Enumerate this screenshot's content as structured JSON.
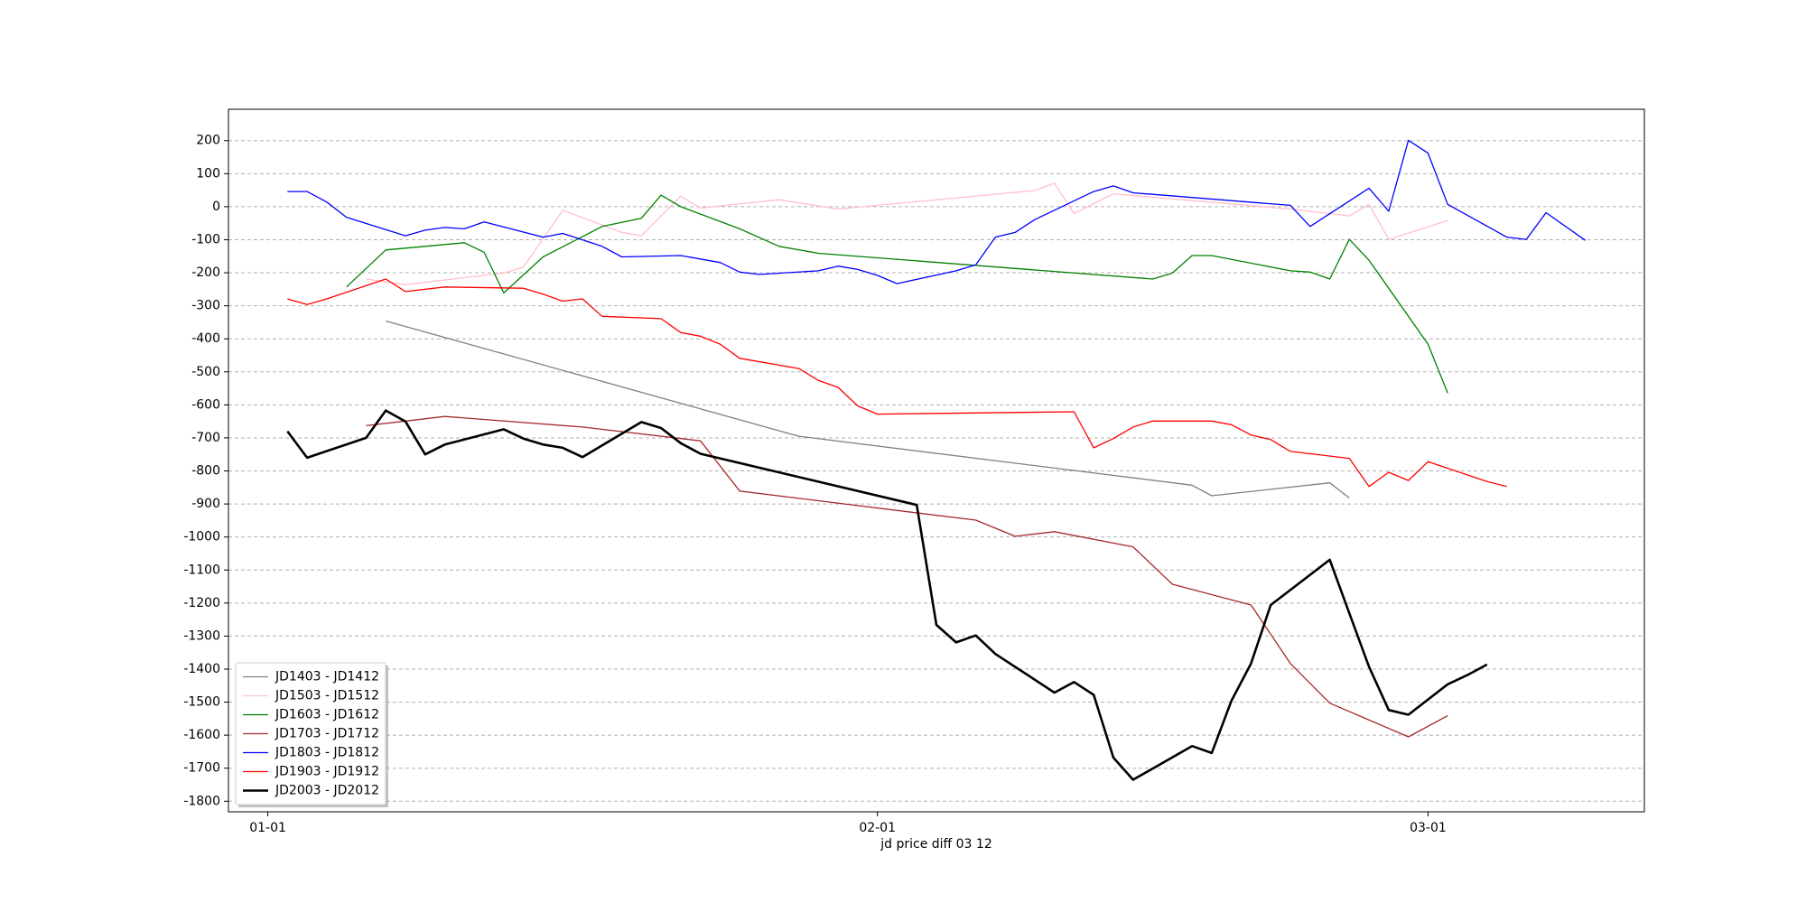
{
  "chart_data": {
    "type": "line",
    "xlabel": "jd price diff 03 12",
    "xlim": [
      "12-30",
      "03-12"
    ],
    "xticks": [
      "01-01",
      "02-01",
      "03-01"
    ],
    "ylim": [
      -1832,
      295
    ],
    "yticks": [
      200,
      100,
      0,
      -100,
      -200,
      -300,
      -400,
      -500,
      -600,
      -700,
      -800,
      -900,
      -1000,
      -1100,
      -1200,
      -1300,
      -1400,
      -1500,
      -1600,
      -1700,
      -1800
    ],
    "grid": true,
    "legend": "lower left",
    "series": [
      {
        "name": "JD1403 - JD1412",
        "color": "#808080",
        "width": 1.3,
        "x": [
          "01-07",
          "01-28",
          "02-17",
          "02-18",
          "02-24",
          "02-25"
        ],
        "values": [
          -346,
          -695,
          -843,
          -875,
          -836,
          -882
        ]
      },
      {
        "name": "JD1503 - JD1512",
        "color": "#ffc0cb",
        "width": 1.3,
        "x": [
          "01-06",
          "01-08",
          "01-13",
          "01-14",
          "01-16",
          "01-19",
          "01-20",
          "01-22",
          "01-23",
          "01-27",
          "01-30",
          "02-09",
          "02-10",
          "02-11",
          "02-13",
          "02-22",
          "02-25",
          "02-26",
          "02-27",
          "03-02"
        ],
        "values": [
          -219,
          -236,
          -201,
          -183,
          -11,
          -78,
          -88,
          32,
          -4,
          21,
          -7,
          49,
          71,
          -21,
          39,
          -7,
          -28,
          7,
          -99,
          -42
        ]
      },
      {
        "name": "JD1603 - JD1612",
        "color": "#008000",
        "width": 1.3,
        "x": [
          "01-05",
          "01-07",
          "01-11",
          "01-12",
          "01-13",
          "01-15",
          "01-18",
          "01-20",
          "01-21",
          "01-22",
          "01-25",
          "01-27",
          "01-29",
          "02-15",
          "02-16",
          "02-17",
          "02-18",
          "02-22",
          "02-23",
          "02-24",
          "02-25",
          "02-26",
          "03-01",
          "03-02"
        ],
        "values": [
          -243,
          -131,
          -109,
          -138,
          -261,
          -152,
          -60,
          -35,
          35,
          0,
          -67,
          -120,
          -141,
          -219,
          -201,
          -148,
          -148,
          -194,
          -198,
          -219,
          -99,
          -162,
          -416,
          -564
        ]
      },
      {
        "name": "JD1703 - JD1712",
        "color": "#a52a2a",
        "width": 1.3,
        "x": [
          "01-06",
          "01-08",
          "01-10",
          "01-17",
          "01-23",
          "01-25",
          "02-06",
          "02-08",
          "02-10",
          "02-14",
          "02-16",
          "02-20",
          "02-22",
          "02-24",
          "02-28",
          "03-02"
        ],
        "values": [
          -663,
          -649,
          -635,
          -667,
          -709,
          -861,
          -949,
          -998,
          -984,
          -1030,
          -1143,
          -1206,
          -1383,
          -1503,
          -1605,
          -1541
        ]
      },
      {
        "name": "JD1803 - JD1812",
        "color": "#0000ff",
        "width": 1.3,
        "x": [
          "01-02",
          "01-03",
          "01-04",
          "01-05",
          "01-08",
          "01-09",
          "01-10",
          "01-11",
          "01-12",
          "01-15",
          "01-16",
          "01-18",
          "01-19",
          "01-22",
          "01-24",
          "01-25",
          "01-26",
          "01-29",
          "01-30",
          "01-31",
          "02-01",
          "02-02",
          "02-05",
          "02-06",
          "02-07",
          "02-08",
          "02-09",
          "02-12",
          "02-13",
          "02-14",
          "02-22",
          "02-23",
          "02-26",
          "02-27",
          "02-28",
          "03-01",
          "03-02",
          "03-05",
          "03-06",
          "03-07",
          "03-09"
        ],
        "values": [
          46,
          46,
          14,
          -32,
          -88,
          -71,
          -63,
          -67,
          -46,
          -92,
          -81,
          -120,
          -152,
          -148,
          -169,
          -198,
          -205,
          -194,
          -180,
          -190,
          -208,
          -233,
          -194,
          -176,
          -92,
          -78,
          -39,
          46,
          63,
          42,
          4,
          -60,
          56,
          -14,
          201,
          162,
          7,
          -92,
          -99,
          -18,
          -102
        ]
      },
      {
        "name": "JD1903 - JD1912",
        "color": "#ff0000",
        "width": 1.3,
        "x": [
          "01-02",
          "01-03",
          "01-04",
          "01-07",
          "01-08",
          "01-10",
          "01-14",
          "01-15",
          "01-16",
          "01-17",
          "01-18",
          "01-21",
          "01-22",
          "01-23",
          "01-24",
          "01-25",
          "01-28",
          "01-29",
          "01-30",
          "01-31",
          "02-01",
          "02-11",
          "02-12",
          "02-13",
          "02-14",
          "02-15",
          "02-18",
          "02-19",
          "02-20",
          "02-21",
          "02-22",
          "02-25",
          "02-26",
          "02-27",
          "02-28",
          "03-01",
          "03-04",
          "03-05"
        ],
        "values": [
          -279,
          -296,
          -279,
          -219,
          -257,
          -243,
          -247,
          -265,
          -286,
          -279,
          -332,
          -339,
          -381,
          -392,
          -416,
          -459,
          -490,
          -526,
          -547,
          -603,
          -628,
          -621,
          -730,
          -702,
          -667,
          -649,
          -649,
          -660,
          -691,
          -705,
          -741,
          -762,
          -847,
          -804,
          -829,
          -772,
          -832,
          -847
        ]
      },
      {
        "name": "JD2003 - JD2012",
        "color": "#000000",
        "width": 2.6,
        "x": [
          "01-02",
          "01-03",
          "01-06",
          "01-07",
          "01-08",
          "01-09",
          "01-10",
          "01-13",
          "01-14",
          "01-15",
          "01-16",
          "01-17",
          "01-20",
          "01-21",
          "01-22",
          "01-23",
          "02-03",
          "02-04",
          "02-05",
          "02-06",
          "02-07",
          "02-10",
          "02-11",
          "02-12",
          "02-13",
          "02-14",
          "02-17",
          "02-18",
          "02-19",
          "02-20",
          "02-21",
          "02-24",
          "02-25",
          "02-26",
          "02-27",
          "02-28",
          "03-02",
          "03-03",
          "03-04"
        ],
        "values": [
          -680,
          -760,
          -700,
          -617,
          -650,
          -750,
          -720,
          -674,
          -702,
          -720,
          -730,
          -758,
          -652,
          -670,
          -716,
          -748,
          -903,
          -1266,
          -1319,
          -1298,
          -1354,
          -1471,
          -1439,
          -1478,
          -1668,
          -1735,
          -1633,
          -1654,
          -1496,
          -1383,
          -1206,
          -1069,
          -1231,
          -1393,
          -1524,
          -1538,
          -1446,
          -1418,
          -1386
        ]
      }
    ]
  }
}
